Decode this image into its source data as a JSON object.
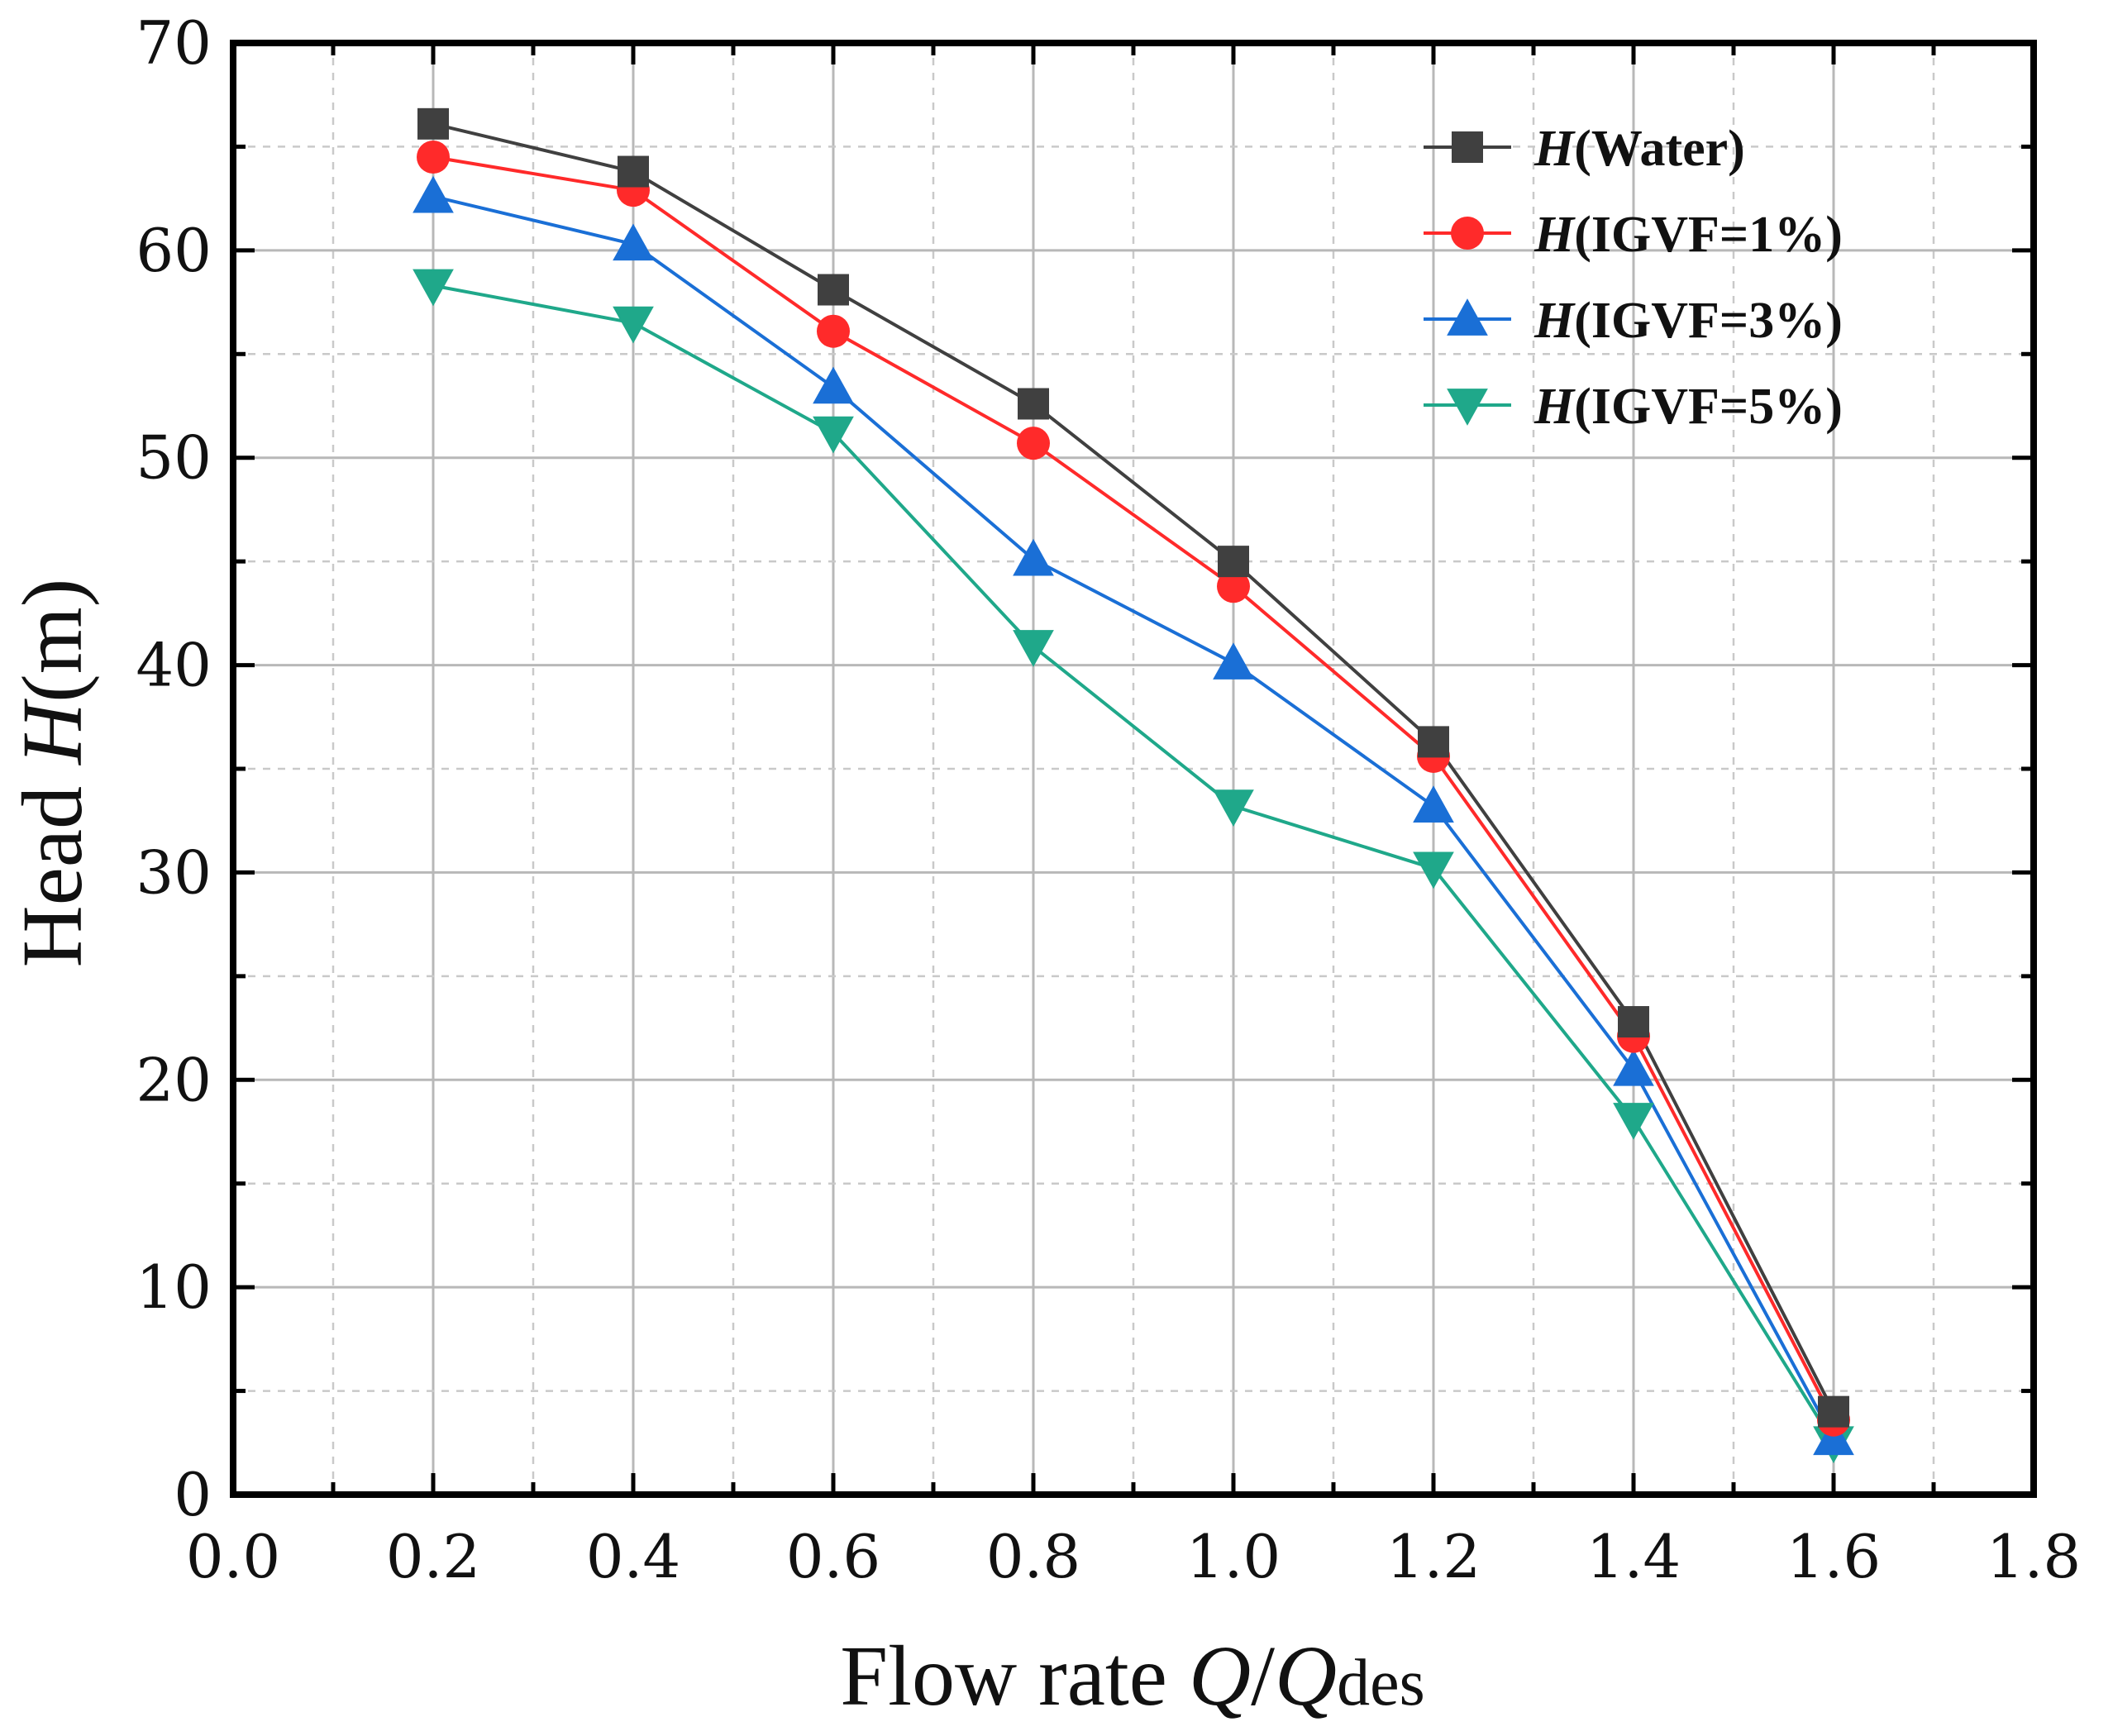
{
  "chart_data": {
    "type": "line",
    "title": "",
    "xlabel": {
      "prefix": "Flow rate ",
      "var1": "Q",
      "slash": "/",
      "var2": "Q",
      "sub": "des"
    },
    "ylabel": {
      "prefix": "Head ",
      "var": "H",
      "suffix": "(m)"
    },
    "xlim": [
      0.0,
      1.8
    ],
    "ylim": [
      0,
      70
    ],
    "x_ticks": [
      0.0,
      0.2,
      0.4,
      0.6,
      0.8,
      1.0,
      1.2,
      1.4,
      1.6,
      1.8
    ],
    "x_tick_labels": [
      "0.0",
      "0.2",
      "0.4",
      "0.6",
      "0.8",
      "1.0",
      "1.2",
      "1.4",
      "1.6",
      "1.8"
    ],
    "y_ticks": [
      0,
      10,
      20,
      30,
      40,
      50,
      60,
      70
    ],
    "y_tick_labels": [
      "0",
      "10",
      "20",
      "30",
      "40",
      "50",
      "60",
      "70"
    ],
    "grid": true,
    "legend_position": "top-right",
    "x": [
      0.2,
      0.4,
      0.6,
      0.8,
      1.0,
      1.2,
      1.4,
      1.6
    ],
    "series": [
      {
        "name": "H(Water)",
        "label_var": "H",
        "label_rest": "(Water)",
        "color": "#404040",
        "marker": "square",
        "values": [
          66.1,
          63.8,
          58.1,
          52.6,
          45.0,
          36.3,
          22.8,
          4.0
        ]
      },
      {
        "name": "H(IGVF=1%)",
        "label_var": "H",
        "label_rest": "(IGVF=1%)",
        "color": "#ff2a2a",
        "marker": "circle",
        "values": [
          64.5,
          62.9,
          56.1,
          50.7,
          43.8,
          35.6,
          22.1,
          3.6
        ]
      },
      {
        "name": "H(IGVF=3%)",
        "label_var": "H",
        "label_rest": "(IGVF=3%)",
        "color": "#1a6fd6",
        "marker": "triangle-up",
        "values": [
          62.6,
          60.3,
          53.4,
          45.1,
          40.1,
          33.2,
          20.5,
          2.7
        ]
      },
      {
        "name": "H(IGVF=5%)",
        "label_var": "H",
        "label_rest": "(IGVF=5%)",
        "color": "#1fa88a",
        "marker": "triangle-down",
        "values": [
          58.3,
          56.5,
          51.2,
          40.9,
          33.2,
          30.2,
          18.1,
          2.5
        ]
      }
    ]
  }
}
